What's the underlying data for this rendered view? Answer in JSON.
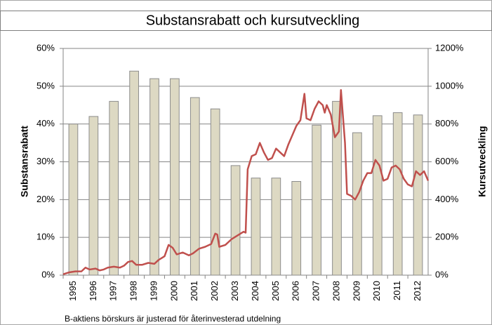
{
  "chart_data": {
    "type": "bar",
    "title": "Substansrabatt och kursutveckling",
    "note": "B-aktiens börskurs är justerad för återinvesterad utdelning",
    "y_label": "Substansrabatt",
    "y2_label": "Kursutveckling",
    "categories": [
      "1995",
      "1996",
      "1997",
      "1998",
      "1999",
      "2000",
      "2001",
      "2002",
      "2003",
      "2004",
      "2005",
      "2006",
      "2007",
      "2008",
      "2009",
      "2010",
      "2011",
      "2012"
    ],
    "ylim": [
      0,
      60
    ],
    "yticks": [
      {
        "value": 0,
        "label": "0%"
      },
      {
        "value": 10,
        "label": "10%"
      },
      {
        "value": 20,
        "label": "20%"
      },
      {
        "value": 30,
        "label": "30%"
      },
      {
        "value": 40,
        "label": "40%"
      },
      {
        "value": 50,
        "label": "50%"
      },
      {
        "value": 60,
        "label": "60%"
      }
    ],
    "y2lim": [
      0,
      1200
    ],
    "y2ticks": [
      {
        "value": 0,
        "label": "0%"
      },
      {
        "value": 200,
        "label": "200%"
      },
      {
        "value": 400,
        "label": "400%"
      },
      {
        "value": 600,
        "label": "600%"
      },
      {
        "value": 800,
        "label": "800%"
      },
      {
        "value": 1000,
        "label": "1000%"
      },
      {
        "value": 1200,
        "label": "1200%"
      }
    ],
    "grid": true,
    "series": [
      {
        "type": "bar",
        "color": "#ddd9c3",
        "values": [
          40,
          42,
          46,
          54,
          52,
          52,
          47,
          44,
          29,
          25.7,
          25.7,
          24.8,
          39.7,
          46,
          37.7,
          42.2,
          43,
          42.4
        ]
      },
      {
        "type": "line",
        "axis": "y2",
        "color": "#c0504d",
        "x": [
          1995.0,
          1995.3,
          1995.6,
          1995.9,
          1996.1,
          1996.3,
          1996.6,
          1996.8,
          1997.0,
          1997.2,
          1997.5,
          1997.8,
          1998.0,
          1998.2,
          1998.4,
          1998.6,
          1998.9,
          1999.2,
          1999.5,
          1999.7,
          2000.0,
          2000.2,
          2000.4,
          2000.6,
          2000.9,
          2001.2,
          2001.4,
          2001.7,
          2002.0,
          2002.3,
          2002.5,
          2002.6,
          2002.7,
          2003.0,
          2003.3,
          2003.6,
          2003.9,
          2004.0,
          2004.1,
          2004.3,
          2004.5,
          2004.7,
          2004.9,
          2005.1,
          2005.3,
          2005.5,
          2005.7,
          2005.9,
          2006.1,
          2006.3,
          2006.5,
          2006.7,
          2006.9,
          2007.0,
          2007.2,
          2007.4,
          2007.6,
          2007.8,
          2007.9,
          2008.0,
          2008.2,
          2008.4,
          2008.6,
          2008.7,
          2008.9,
          2009.0,
          2009.2,
          2009.4,
          2009.6,
          2009.8,
          2010.0,
          2010.2,
          2010.4,
          2010.6,
          2010.8,
          2011.0,
          2011.2,
          2011.4,
          2011.6,
          2011.8,
          2012.0,
          2012.2,
          2012.4,
          2012.6,
          2012.8,
          2013.0
        ],
        "values": [
          5,
          15,
          20,
          20,
          40,
          30,
          35,
          25,
          30,
          40,
          45,
          40,
          50,
          70,
          75,
          55,
          55,
          65,
          60,
          80,
          100,
          160,
          145,
          110,
          120,
          105,
          115,
          140,
          150,
          165,
          220,
          215,
          150,
          160,
          190,
          210,
          230,
          225,
          560,
          630,
          640,
          700,
          650,
          610,
          620,
          670,
          650,
          630,
          690,
          740,
          790,
          820,
          960,
          830,
          820,
          880,
          920,
          900,
          860,
          900,
          850,
          730,
          760,
          980,
          700,
          430,
          420,
          400,
          440,
          500,
          540,
          540,
          610,
          580,
          500,
          510,
          570,
          580,
          560,
          510,
          480,
          470,
          550,
          530,
          550,
          500
        ]
      }
    ]
  }
}
